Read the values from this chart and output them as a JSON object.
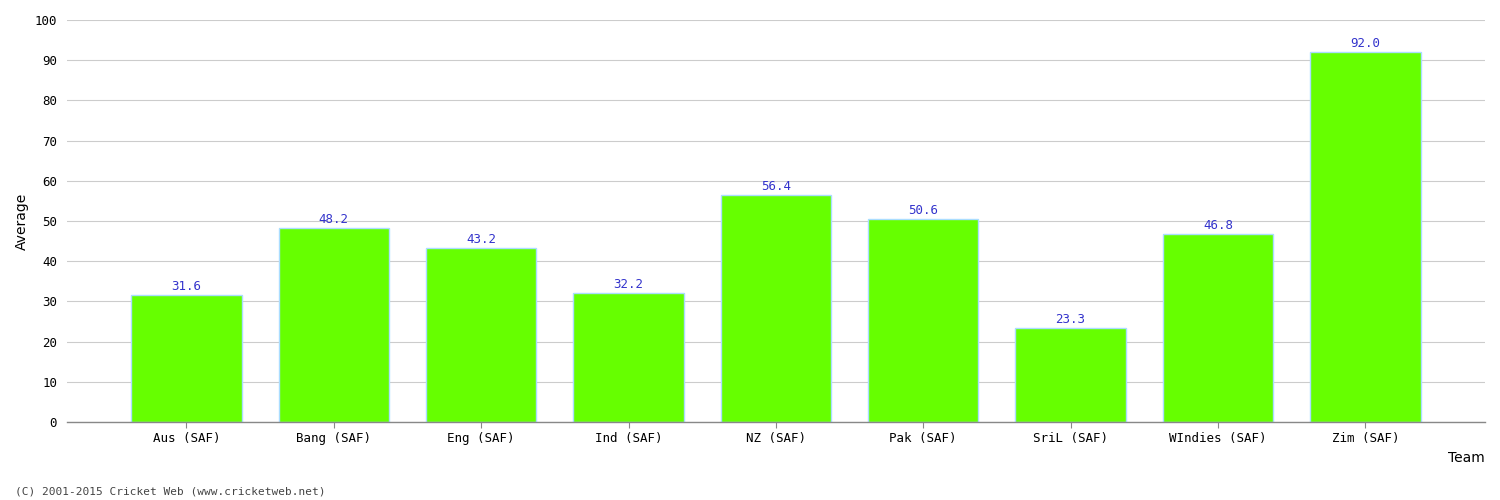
{
  "categories": [
    "Aus (SAF)",
    "Bang (SAF)",
    "Eng (SAF)",
    "Ind (SAF)",
    "NZ (SAF)",
    "Pak (SAF)",
    "SriL (SAF)",
    "WIndies (SAF)",
    "Zim (SAF)"
  ],
  "values": [
    31.6,
    48.2,
    43.2,
    32.2,
    56.4,
    50.6,
    23.3,
    46.8,
    92.0
  ],
  "bar_color": "#66ff00",
  "bar_edge_color": "#aaddff",
  "label_color": "#3333cc",
  "xlabel": "Team",
  "ylabel": "Average",
  "ylim": [
    0,
    100
  ],
  "yticks": [
    0,
    10,
    20,
    30,
    40,
    50,
    60,
    70,
    80,
    90,
    100
  ],
  "bg_color": "#ffffff",
  "grid_color": "#cccccc",
  "label_fontsize": 9,
  "axis_fontsize": 10,
  "tick_fontsize": 9,
  "footer": "(C) 2001-2015 Cricket Web (www.cricketweb.net)"
}
